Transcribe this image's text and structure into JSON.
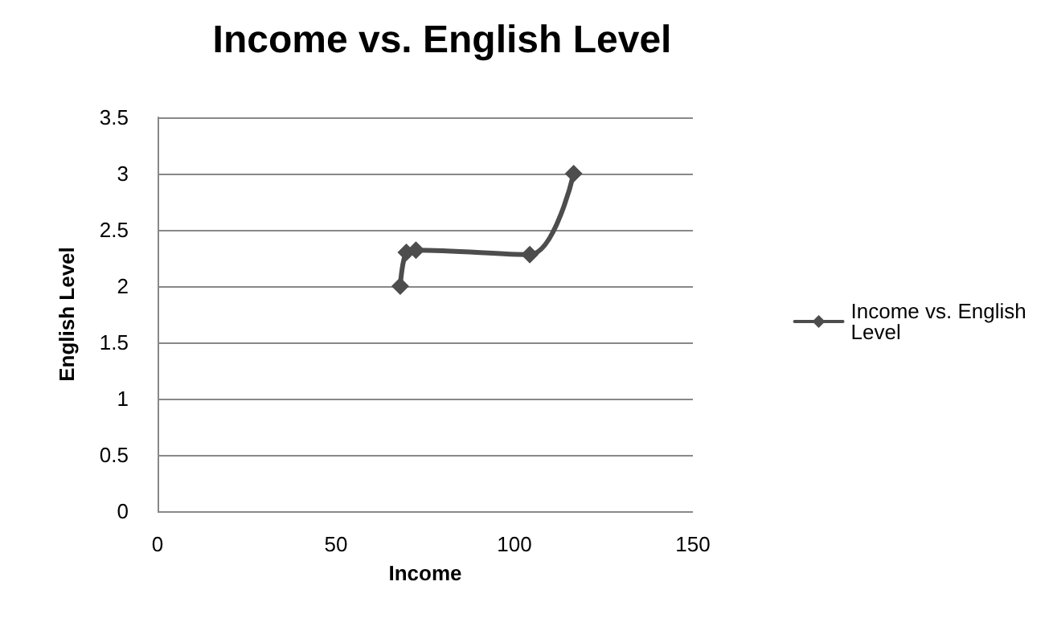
{
  "chart_data": {
    "type": "line",
    "title": "Income vs. English Level",
    "xlabel": "Income",
    "ylabel": "English Level",
    "x": [
      68,
      69.7,
      72.4,
      104.3,
      116.6
    ],
    "series": [
      {
        "name": "Income vs. English Level",
        "color": "#4d4d4d",
        "values": [
          2.0,
          2.3,
          2.32,
          2.28,
          3.0
        ]
      }
    ],
    "xlim": [
      0,
      150
    ],
    "xticks": [
      0,
      50,
      100,
      150
    ],
    "ylim": [
      0,
      3.5
    ],
    "yticks": [
      0,
      0.5,
      1,
      1.5,
      2,
      2.5,
      3,
      3.5
    ],
    "grid": "y",
    "legend": "right",
    "marker": "diamond",
    "line_style": "solid"
  }
}
